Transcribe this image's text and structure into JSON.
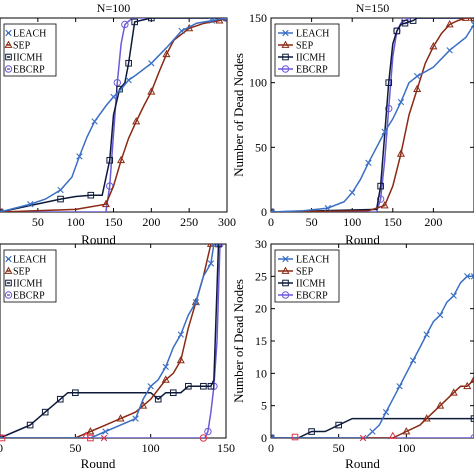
{
  "colors": {
    "LEACH": "#3a6fc4",
    "SEP": "#8a2a14",
    "IICMH": "#0d1a3a",
    "EBCRP": "#6a5ad8",
    "ALT": "#e0334a"
  },
  "chart_data": [
    {
      "type": "line",
      "title": "N=100",
      "xlabel": "Round",
      "ylabel": "",
      "xlim": [
        0,
        300
      ],
      "ylim": [
        0,
        150
      ],
      "xticks": [
        50,
        100,
        150,
        200,
        250,
        300
      ],
      "xtick_labels": [
        "50",
        "100",
        "150",
        "200",
        "250",
        "300"
      ],
      "yticks": [],
      "ytick_labels": [],
      "grid": false,
      "legend": "top-left",
      "legend_entries": [
        "LEACH",
        "SEP",
        "IICMH",
        "EBCRP"
      ],
      "series": [
        {
          "name": "LEACH",
          "marker": "x",
          "x": [
            0,
            20,
            40,
            60,
            80,
            95,
            105,
            115,
            125,
            140,
            150,
            160,
            170,
            180,
            200,
            220,
            240,
            260,
            280,
            300
          ],
          "y": [
            0,
            3,
            6,
            10,
            17,
            27,
            43,
            58,
            70,
            82,
            89,
            95,
            102,
            106,
            115,
            127,
            140,
            146,
            148,
            150
          ]
        },
        {
          "name": "SEP",
          "marker": "triangle",
          "x": [
            0,
            100,
            140,
            150,
            160,
            170,
            180,
            190,
            200,
            210,
            220,
            230,
            250,
            270,
            290,
            300
          ],
          "y": [
            0,
            2,
            6,
            20,
            40,
            57,
            70,
            82,
            93,
            108,
            122,
            133,
            142,
            146,
            148,
            150
          ]
        },
        {
          "name": "IICMH",
          "marker": "square",
          "x": [
            0,
            40,
            80,
            100,
            120,
            135,
            145,
            150,
            158,
            165,
            170,
            175,
            178,
            185,
            200,
            300
          ],
          "y": [
            0,
            5,
            10,
            12,
            13,
            13,
            40,
            75,
            95,
            100,
            115,
            135,
            147,
            148,
            150,
            150
          ]
        },
        {
          "name": "EBCRP",
          "marker": "circle",
          "x": [
            0,
            140,
            145,
            150,
            155,
            160,
            165,
            175,
            300
          ],
          "y": [
            0,
            0,
            20,
            60,
            100,
            130,
            145,
            150,
            150
          ]
        }
      ]
    },
    {
      "type": "line",
      "title": "N=150",
      "xlabel": "Round",
      "ylabel": "Number of Dead Nodes",
      "xlim": [
        0,
        250
      ],
      "ylim": [
        0,
        150
      ],
      "xticks": [
        0,
        50,
        100,
        150,
        200
      ],
      "xtick_labels": [
        "0",
        "50",
        "100",
        "150",
        "200"
      ],
      "yticks": [
        0,
        50,
        100,
        150
      ],
      "ytick_labels": [
        "0",
        "50",
        "100",
        "150"
      ],
      "grid": false,
      "legend": "top-left",
      "legend_entries": [
        "LEACH",
        "SEP",
        "IICMH",
        "EBCRP"
      ],
      "series": [
        {
          "name": "LEACH",
          "marker": "x",
          "x": [
            0,
            40,
            70,
            90,
            100,
            110,
            120,
            130,
            140,
            150,
            160,
            170,
            180,
            200,
            220,
            240,
            250
          ],
          "y": [
            0,
            1,
            3,
            8,
            15,
            25,
            38,
            50,
            62,
            72,
            85,
            100,
            105,
            112,
            125,
            135,
            145
          ]
        },
        {
          "name": "SEP",
          "marker": "triangle",
          "x": [
            0,
            120,
            140,
            150,
            160,
            170,
            180,
            190,
            200,
            210,
            220,
            230,
            240,
            250
          ],
          "y": [
            0,
            1,
            5,
            20,
            45,
            75,
            95,
            115,
            128,
            138,
            145,
            148,
            150,
            150
          ]
        },
        {
          "name": "IICMH",
          "marker": "square",
          "x": [
            0,
            130,
            135,
            140,
            145,
            150,
            155,
            160,
            165,
            170,
            175,
            180,
            250
          ],
          "y": [
            0,
            2,
            20,
            60,
            100,
            130,
            140,
            145,
            146,
            147,
            148,
            150,
            150
          ]
        },
        {
          "name": "EBCRP",
          "marker": "circle",
          "x": [
            0,
            130,
            135,
            140,
            145,
            150,
            155,
            160,
            165,
            170,
            250
          ],
          "y": [
            0,
            0,
            10,
            40,
            80,
            120,
            140,
            146,
            148,
            150,
            150
          ]
        }
      ]
    },
    {
      "type": "line",
      "title": "",
      "xlabel": "Round",
      "ylabel": "",
      "xlim": [
        0,
        150
      ],
      "ylim": [
        0,
        30
      ],
      "xticks": [
        0,
        50,
        100,
        150
      ],
      "xtick_labels": [
        "0",
        "50",
        "100",
        "150"
      ],
      "yticks": [],
      "ytick_labels": [],
      "grid": false,
      "legend": "top-left",
      "legend_entries": [
        "LEACH",
        "SEP",
        "IICMH",
        "EBCRP"
      ],
      "series": [
        {
          "name": "LEACH",
          "marker": "x",
          "x": [
            0,
            60,
            70,
            80,
            90,
            95,
            100,
            105,
            110,
            115,
            120,
            125,
            130,
            135,
            140,
            142
          ],
          "y": [
            0,
            0,
            1,
            2,
            3,
            6,
            8,
            9,
            11,
            14,
            16,
            19,
            21,
            25,
            27,
            30
          ]
        },
        {
          "name": "SEP",
          "marker": "triangle",
          "x": [
            0,
            50,
            60,
            70,
            80,
            90,
            95,
            100,
            110,
            115,
            120,
            125,
            130,
            135,
            140
          ],
          "y": [
            0,
            0,
            1,
            2,
            3,
            4,
            5,
            6,
            9,
            10,
            12,
            17,
            21,
            25,
            30
          ]
        },
        {
          "name": "IICMH",
          "marker": "square",
          "x": [
            0,
            10,
            20,
            25,
            30,
            35,
            40,
            45,
            50,
            100,
            105,
            110,
            115,
            120,
            125,
            130,
            135,
            138,
            140,
            142,
            145
          ],
          "y": [
            0,
            1,
            2,
            3,
            4,
            5,
            6,
            7,
            7,
            7,
            6,
            7,
            7,
            7,
            8,
            8,
            8,
            8,
            8,
            9,
            30
          ]
        },
        {
          "name": "EBCRP",
          "marker": "circle",
          "x": [
            0,
            136,
            138,
            140,
            142,
            144,
            146
          ],
          "y": [
            0,
            0,
            1,
            4,
            8,
            15,
            30
          ]
        }
      ]
    },
    {
      "type": "line",
      "title": "",
      "xlabel": "Round",
      "ylabel": "Number of Dead Nodes",
      "xlim": [
        0,
        150
      ],
      "ylim": [
        0,
        30
      ],
      "xticks": [
        0,
        50,
        100
      ],
      "xtick_labels": [
        "0",
        "50",
        "100"
      ],
      "yticks": [
        0,
        5,
        10,
        15,
        20,
        25,
        30
      ],
      "ytick_labels": [
        "0",
        "5",
        "10",
        "15",
        "20",
        "25",
        "30"
      ],
      "grid": false,
      "legend": "top-left",
      "legend_entries": [
        "LEACH",
        "SEP",
        "IICMH",
        "EBCRP"
      ],
      "series": [
        {
          "name": "LEACH",
          "marker": "x",
          "x": [
            0,
            70,
            75,
            80,
            85,
            90,
            95,
            100,
            105,
            110,
            115,
            120,
            125,
            130,
            135,
            140,
            145,
            150
          ],
          "y": [
            0,
            0,
            1,
            2,
            4,
            6,
            8,
            10,
            12,
            14,
            16,
            18,
            19,
            21,
            22,
            24,
            25,
            25
          ]
        },
        {
          "name": "SEP",
          "marker": "triangle",
          "x": [
            0,
            90,
            100,
            110,
            115,
            120,
            125,
            130,
            135,
            140,
            145,
            150
          ],
          "y": [
            0,
            0,
            1,
            2,
            3,
            4,
            5,
            6,
            7,
            8,
            8,
            9
          ]
        },
        {
          "name": "IICMH",
          "marker": "square",
          "x": [
            0,
            20,
            30,
            40,
            50,
            60,
            150
          ],
          "y": [
            0,
            0,
            1,
            1,
            2,
            3,
            3
          ]
        },
        {
          "name": "EBCRP",
          "marker": "circle",
          "x": [
            0,
            150
          ],
          "y": [
            0,
            0
          ]
        }
      ]
    }
  ]
}
